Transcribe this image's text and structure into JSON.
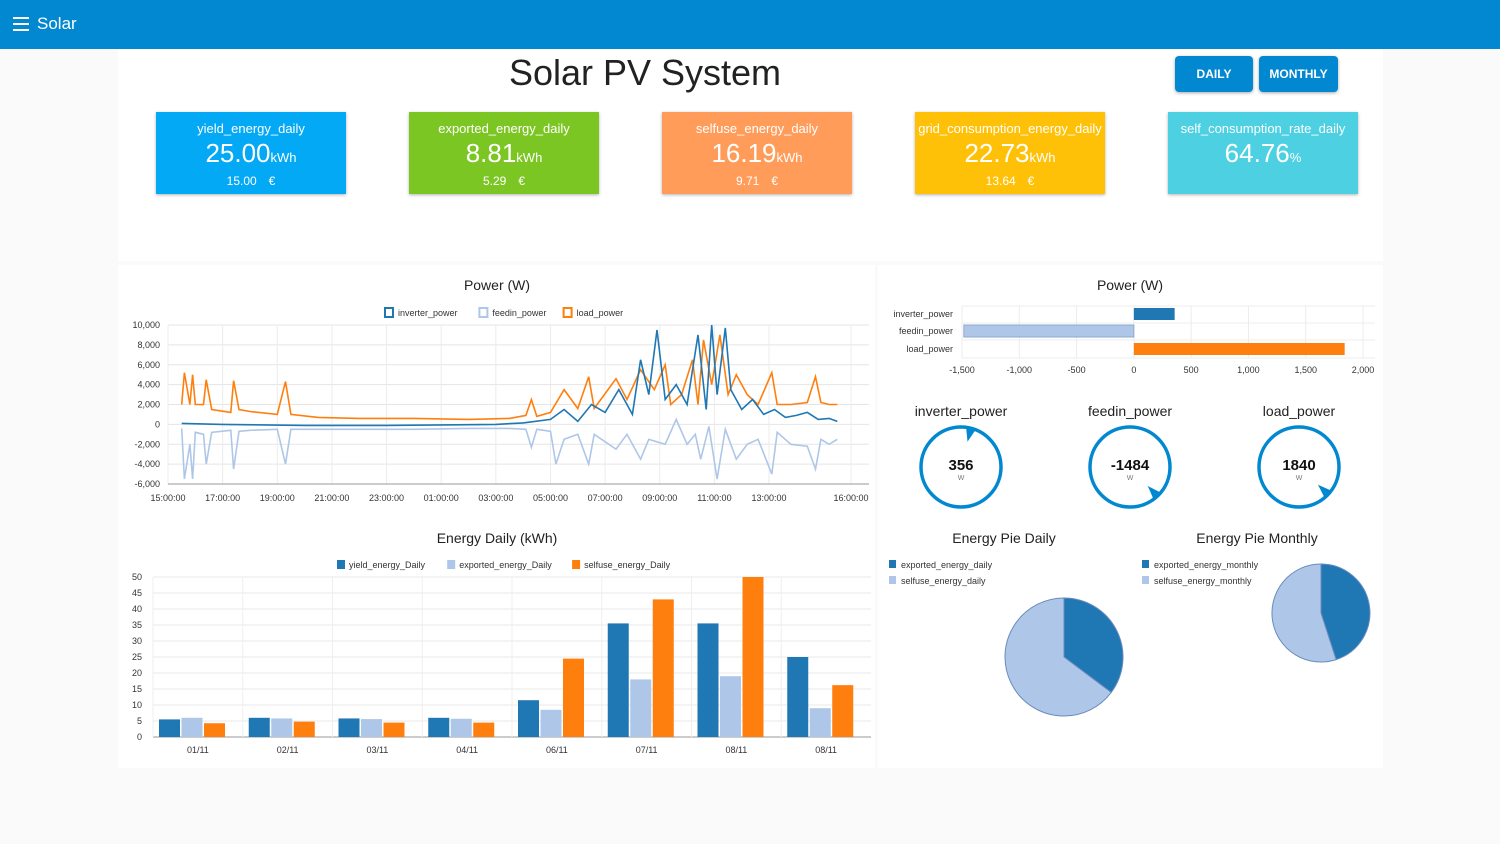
{
  "app": {
    "title": "Solar",
    "menu_icon": "hamburger-menu-icon"
  },
  "page": {
    "title": "Solar PV System"
  },
  "buttons": {
    "daily": "DAILY",
    "monthly": "MONTHLY"
  },
  "colors": {
    "topbar": "#0288d1",
    "blue_dark": "#1f77b4",
    "blue_light": "#aec7e8",
    "orange": "#ff7f0e"
  },
  "kpis": [
    {
      "label": "yield_energy_daily",
      "value": "25.00",
      "unit": "kWh",
      "sub_value": "15.00",
      "sub_unit": "€",
      "color": "#03a9f4"
    },
    {
      "label": "exported_energy_daily",
      "value": "8.81",
      "unit": "kWh",
      "sub_value": "5.29",
      "sub_unit": "€",
      "color": "#7cc623"
    },
    {
      "label": "selfuse_energy_daily",
      "value": "16.19",
      "unit": "kWh",
      "sub_value": "9.71",
      "sub_unit": "€",
      "color": "#ff9c5a"
    },
    {
      "label": "grid_consumption_energy_daily",
      "value": "22.73",
      "unit": "kWh",
      "sub_value": "13.64",
      "sub_unit": "€",
      "color": "#ffc107"
    },
    {
      "label": "self_consumption_rate_daily",
      "value": "64.76",
      "unit": "%",
      "sub_value": "",
      "sub_unit": "",
      "color": "#4dd0e1"
    }
  ],
  "chart_data": [
    {
      "id": "power-line",
      "type": "line",
      "title": "Power (W)",
      "legend": [
        "inverter_power",
        "feedin_power",
        "load_power"
      ],
      "ylim": [
        -6000,
        10000
      ],
      "yticks": [
        "10,000",
        "8,000",
        "6,000",
        "4,000",
        "2,000",
        "0",
        "-2,000",
        "-4,000",
        "-6,000"
      ],
      "xticks": [
        "15:00:00",
        "17:00:00",
        "19:00:00",
        "21:00:00",
        "23:00:00",
        "01:00:00",
        "03:00:00",
        "05:00:00",
        "07:00:00",
        "09:00:00",
        "11:00:00",
        "13:00:00",
        "16:00:00"
      ],
      "x_hours": [
        0,
        2,
        4,
        6,
        8,
        10,
        12,
        14,
        16,
        18,
        20,
        22,
        25
      ],
      "series": [
        {
          "name": "load_power",
          "points": [
            [
              0.5,
              2000
            ],
            [
              0.6,
              5200
            ],
            [
              0.8,
              2000
            ],
            [
              0.9,
              5000
            ],
            [
              1.0,
              2000
            ],
            [
              1.3,
              2000
            ],
            [
              1.4,
              4500
            ],
            [
              1.6,
              1500
            ],
            [
              2.3,
              1200
            ],
            [
              2.4,
              4400
            ],
            [
              2.6,
              1500
            ],
            [
              3.0,
              1300
            ],
            [
              4.0,
              1000
            ],
            [
              4.3,
              4300
            ],
            [
              4.5,
              1000
            ],
            [
              5.5,
              700
            ],
            [
              7,
              600
            ],
            [
              9,
              600
            ],
            [
              11,
              500
            ],
            [
              12.5,
              600
            ],
            [
              13.1,
              900
            ],
            [
              13.3,
              2500
            ],
            [
              13.5,
              800
            ],
            [
              14,
              1200
            ],
            [
              14.5,
              3500
            ],
            [
              15,
              1600
            ],
            [
              15.4,
              4800
            ],
            [
              15.6,
              1600
            ],
            [
              16.4,
              4600
            ],
            [
              16.8,
              2500
            ],
            [
              17.3,
              5500
            ],
            [
              17.8,
              3500
            ],
            [
              18.2,
              6000
            ],
            [
              18.4,
              2000
            ],
            [
              18.8,
              3000
            ],
            [
              19.2,
              6500
            ],
            [
              19.4,
              2000
            ],
            [
              19.6,
              8500
            ],
            [
              19.9,
              4000
            ],
            [
              20.2,
              9000
            ],
            [
              20.5,
              3000
            ],
            [
              20.8,
              5000
            ],
            [
              21.2,
              3000
            ],
            [
              21.6,
              2000
            ],
            [
              22.1,
              5200
            ],
            [
              22.3,
              2000
            ],
            [
              22.8,
              2000
            ],
            [
              23.4,
              2200
            ],
            [
              23.7,
              4800
            ],
            [
              23.9,
              2200
            ],
            [
              24.2,
              2000
            ],
            [
              24.5,
              2000
            ]
          ]
        },
        {
          "name": "inverter_power",
          "points": [
            [
              0.5,
              100
            ],
            [
              2,
              0
            ],
            [
              5,
              -100
            ],
            [
              8,
              -100
            ],
            [
              10,
              -50
            ],
            [
              12,
              0
            ],
            [
              13.0,
              150
            ],
            [
              14,
              500
            ],
            [
              14.5,
              1500
            ],
            [
              15,
              300
            ],
            [
              15.5,
              2000
            ],
            [
              16,
              1200
            ],
            [
              16.5,
              3500
            ],
            [
              17,
              1000
            ],
            [
              17.3,
              6500
            ],
            [
              17.6,
              3000
            ],
            [
              17.9,
              9500
            ],
            [
              18.2,
              2500
            ],
            [
              18.6,
              4000
            ],
            [
              19,
              2000
            ],
            [
              19.4,
              9000
            ],
            [
              19.7,
              1500
            ],
            [
              19.9,
              10000
            ],
            [
              20.1,
              3000
            ],
            [
              20.4,
              9700
            ],
            [
              20.6,
              3500
            ],
            [
              21,
              1500
            ],
            [
              21.4,
              2500
            ],
            [
              21.8,
              1000
            ],
            [
              22.2,
              1500
            ],
            [
              22.6,
              700
            ],
            [
              23,
              900
            ],
            [
              23.4,
              1200
            ],
            [
              23.8,
              500
            ],
            [
              24.2,
              600
            ],
            [
              24.5,
              300
            ]
          ]
        },
        {
          "name": "feedin_power",
          "points": [
            [
              0.5,
              -400
            ],
            [
              0.6,
              -5500
            ],
            [
              0.8,
              -2000
            ],
            [
              0.9,
              -5500
            ],
            [
              1.0,
              -800
            ],
            [
              1.3,
              -1000
            ],
            [
              1.4,
              -4000
            ],
            [
              1.6,
              -800
            ],
            [
              2.3,
              -600
            ],
            [
              2.4,
              -4500
            ],
            [
              2.6,
              -700
            ],
            [
              3.0,
              -600
            ],
            [
              4.0,
              -500
            ],
            [
              4.3,
              -4000
            ],
            [
              4.5,
              -500
            ],
            [
              5.5,
              -500
            ],
            [
              7,
              -500
            ],
            [
              9,
              -500
            ],
            [
              11,
              -400
            ],
            [
              12.5,
              -400
            ],
            [
              13.1,
              -500
            ],
            [
              13.3,
              -2300
            ],
            [
              13.5,
              -500
            ],
            [
              14,
              -700
            ],
            [
              14.2,
              -4000
            ],
            [
              14.5,
              -1500
            ],
            [
              15,
              -1000
            ],
            [
              15.4,
              -4000
            ],
            [
              15.6,
              -1000
            ],
            [
              16.4,
              -2500
            ],
            [
              16.8,
              -1000
            ],
            [
              17.3,
              -3500
            ],
            [
              17.6,
              -1500
            ],
            [
              18.2,
              -2000
            ],
            [
              18.6,
              500
            ],
            [
              19,
              -2000
            ],
            [
              19.3,
              -1000
            ],
            [
              19.5,
              -3500
            ],
            [
              19.8,
              -200
            ],
            [
              20.1,
              -5500
            ],
            [
              20.4,
              -500
            ],
            [
              20.8,
              -3500
            ],
            [
              21.2,
              -2000
            ],
            [
              21.6,
              -1500
            ],
            [
              22.1,
              -5000
            ],
            [
              22.3,
              -800
            ],
            [
              22.8,
              -2000
            ],
            [
              23.4,
              -2200
            ],
            [
              23.7,
              -4500
            ],
            [
              23.9,
              -1500
            ],
            [
              24.2,
              -2000
            ],
            [
              24.5,
              -1500
            ]
          ]
        }
      ]
    },
    {
      "id": "energy-daily-bar",
      "type": "bar",
      "title": "Energy Daily (kWh)",
      "legend": [
        "yield_energy_Daily",
        "exported_energy_Daily",
        "selfuse_energy_Daily"
      ],
      "categories": [
        "01/11",
        "02/11",
        "03/11",
        "04/11",
        "06/11",
        "07/11",
        "08/11",
        "08/11"
      ],
      "ylim": [
        0,
        50
      ],
      "yticks": [
        "50",
        "45",
        "40",
        "35",
        "30",
        "25",
        "20",
        "15",
        "10",
        "5",
        "0"
      ],
      "series": [
        {
          "name": "yield_energy_Daily",
          "values": [
            5.5,
            6,
            5.8,
            6,
            11.5,
            35.5,
            35.5,
            25
          ]
        },
        {
          "name": "exported_energy_Daily",
          "values": [
            6,
            5.8,
            5.6,
            5.7,
            8.5,
            18,
            19,
            9
          ]
        },
        {
          "name": "selfuse_energy_Daily",
          "values": [
            4.3,
            4.8,
            4.5,
            4.5,
            24.5,
            43,
            50,
            16.2
          ]
        }
      ]
    },
    {
      "id": "power-hbar",
      "type": "bar",
      "orientation": "horizontal",
      "title": "Power (W)",
      "categories": [
        "inverter_power",
        "feedin_power",
        "load_power"
      ],
      "values": [
        356,
        -1484,
        1840
      ],
      "xlim": [
        -1500,
        2000
      ],
      "xticks": [
        "-1,500",
        "-1,000",
        "-500",
        "0",
        "500",
        "1,000",
        "1,500",
        "2,000"
      ]
    },
    {
      "id": "energy-pie-daily",
      "type": "pie",
      "title": "Energy Pie Daily",
      "labels": [
        "exported_energy_daily",
        "selfuse_energy_daily"
      ],
      "values": [
        8.81,
        16.19
      ]
    },
    {
      "id": "energy-pie-monthly",
      "type": "pie",
      "title": "Energy Pie Monthly",
      "labels": [
        "exported_energy_monthly",
        "selfuse_energy_monthly"
      ],
      "values": [
        45,
        55
      ]
    }
  ],
  "gauges": [
    {
      "title": "inverter_power",
      "value": "356",
      "unit": "W",
      "fraction": 0.04
    },
    {
      "title": "feedin_power",
      "value": "-1484",
      "unit": "W",
      "fraction": 0.38
    },
    {
      "title": "load_power",
      "value": "1840",
      "unit": "W",
      "fraction": 0.37
    }
  ]
}
